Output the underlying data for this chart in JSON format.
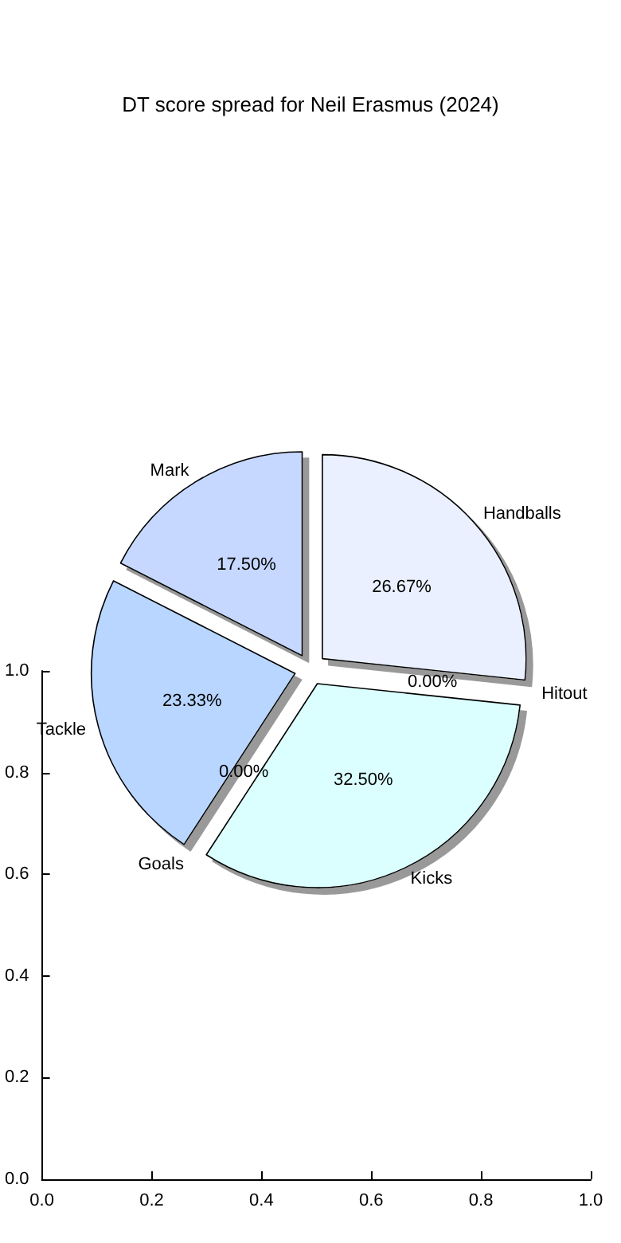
{
  "chart_data": [
    {
      "type": "pie",
      "title": "DT score spread for Neil Erasmus (2024)",
      "categories": [
        "Handballs",
        "Hitout",
        "Kicks",
        "Goals",
        "Tackle",
        "Mark"
      ],
      "values": [
        26.67,
        0,
        32.5,
        0,
        23.33,
        17.5
      ],
      "value_labels": [
        "26.67%",
        "0.00%",
        "32.50%",
        "0.00%",
        "23.33%",
        "17.50%"
      ],
      "colors": [
        "#eaf0ff",
        "#d0e4ff",
        "#dbffff",
        "#d0f0ff",
        "#b8d6ff",
        "#c6d8ff"
      ]
    },
    {
      "type": "scatter",
      "xlim": [
        0,
        1
      ],
      "ylim": [
        0,
        1
      ],
      "xticks": [
        {
          "value": 0,
          "label": "0.0"
        },
        {
          "value": 0.2,
          "label": "0.2"
        },
        {
          "value": 0.4,
          "label": "0.4"
        },
        {
          "value": 0.6,
          "label": "0.6"
        },
        {
          "value": 0.8,
          "label": "0.8"
        },
        {
          "value": 1,
          "label": "1.0"
        }
      ],
      "yticks": [
        {
          "value": 0,
          "label": "0.0"
        },
        {
          "value": 0.2,
          "label": "0.2"
        },
        {
          "value": 0.4,
          "label": "0.4"
        },
        {
          "value": 0.6,
          "label": "0.6"
        },
        {
          "value": 0.8,
          "label": "0.8"
        },
        {
          "value": 1,
          "label": "1.0"
        }
      ]
    }
  ]
}
